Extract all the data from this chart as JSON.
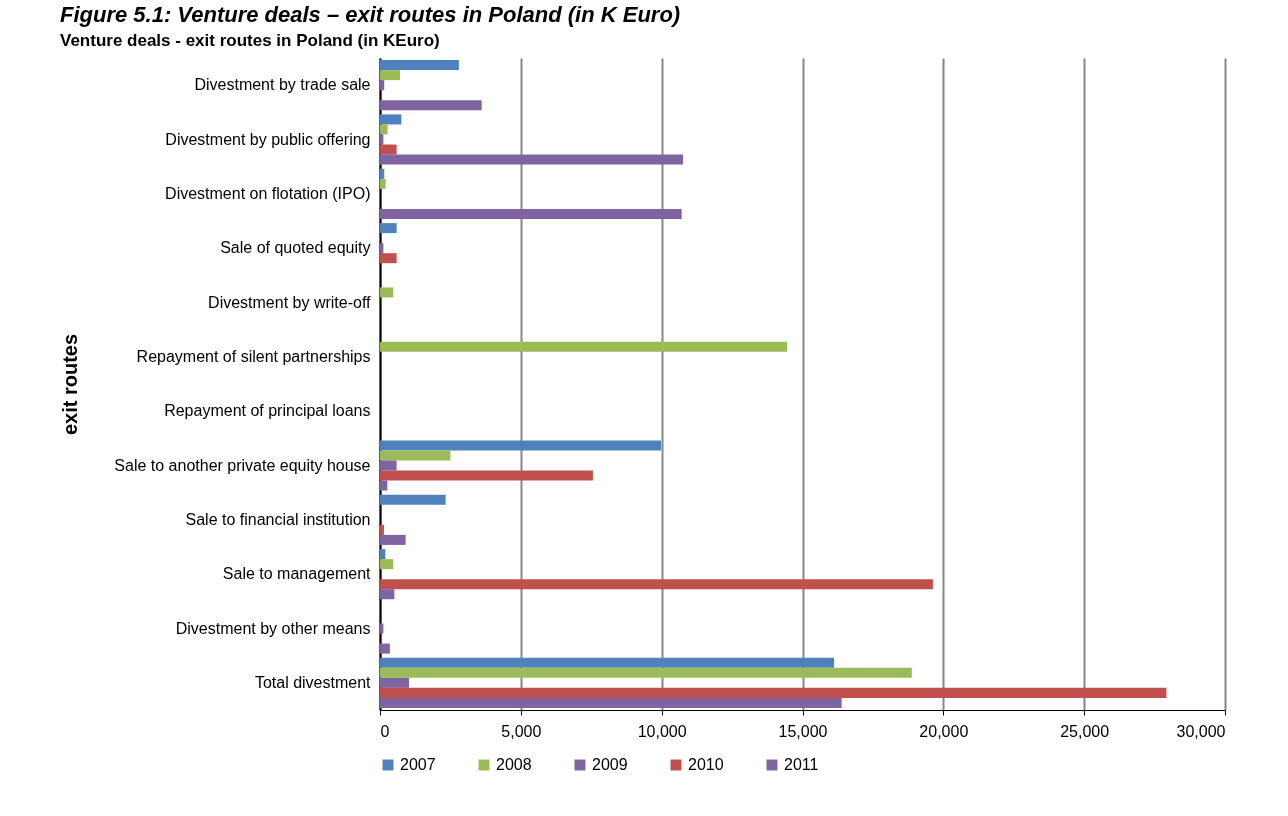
{
  "chart_data": {
    "type": "bar",
    "orientation": "horizontal",
    "title": "Figure 5.1: Venture deals – exit routes in Poland (in K Euro)",
    "subtitle": "Venture deals - exit routes in Poland (in KEuro)",
    "ylabel": "exit routes",
    "categories": [
      "Divestment by trade sale",
      "Divestment by public offering",
      "Divestment on flotation (IPO)",
      "Sale of quoted equity ",
      "Divestment by write-off",
      "Repayment of silent partnerships",
      "Repayment of principal loans",
      "Sale to another private equity house",
      "Sale to financial institution",
      "Sale to management",
      "Divestment by other means",
      "Total divestment"
    ],
    "series": [
      {
        "name": "2007",
        "color": "#4f81bd",
        "values": [
          2800,
          760,
          150,
          590,
          0,
          0,
          0,
          9980,
          2330,
          190,
          null,
          16120
        ]
      },
      {
        "name": "2008",
        "color": "#9bbb59",
        "values": [
          710,
          270,
          200,
          null,
          470,
          14450,
          0,
          2500,
          null,
          470,
          0,
          18880
        ]
      },
      {
        "name": "2009",
        "color": "#8064a2",
        "values": [
          150,
          120,
          0,
          120,
          0,
          0,
          0,
          590,
          0,
          0,
          120,
          1030
        ]
      },
      {
        "name": "2010",
        "color": "#c0504d",
        "values": [
          0,
          590,
          0,
          590,
          0,
          0,
          0,
          7560,
          140,
          19630,
          0,
          27920
        ]
      },
      {
        "name": "2011",
        "color": "#8064a2",
        "values": [
          3610,
          10760,
          10710,
          null,
          0,
          0,
          0,
          260,
          910,
          510,
          350,
          16390
        ]
      }
    ],
    "xlim": [
      0,
      30000
    ],
    "xticks": [
      0,
      {
        "value": 5000,
        "label": "5,000"
      },
      {
        "value": 10000,
        "label": "10,000"
      },
      {
        "value": 15000,
        "label": "15,000"
      },
      {
        "value": 20000,
        "label": "20,000"
      },
      {
        "value": 25000,
        "label": "25,000"
      },
      {
        "value": 30000,
        "label": "30,000"
      }
    ],
    "grid": "x",
    "legend": "bottom"
  }
}
